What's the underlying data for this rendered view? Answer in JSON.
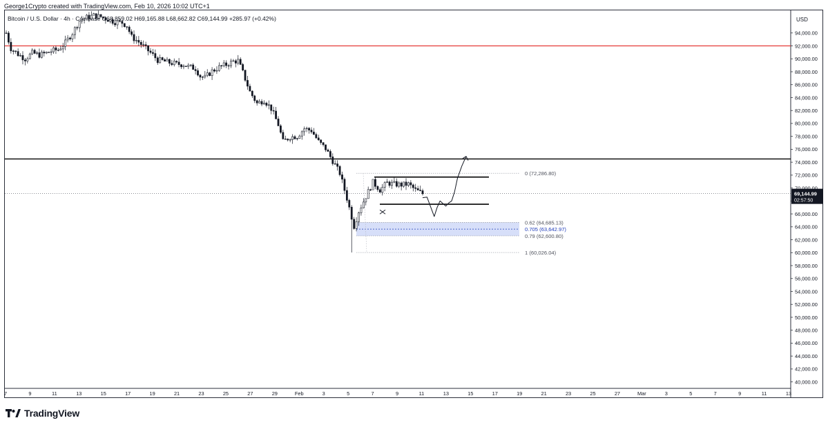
{
  "header": {
    "credit": "George1Crypto created with TradingView.com, Feb 10, 2026 10:02 UTC+1",
    "symbol_line": "Bitcoin / U.S. Dollar · 4h · Coinbase  O68,859.02  H69,165.88  L68,662.82  C69,144.99  +285.97 (+0.42%)"
  },
  "footer": {
    "brand": "TradingView"
  },
  "colors": {
    "up": "#26a69a",
    "down": "#ef5350",
    "candle": "#131722",
    "resistance": "#e53935",
    "level": "#000000",
    "fib_zone": "#c9d4f7",
    "fib_705": "#1e3bb8"
  },
  "chart_data": {
    "type": "candlestick",
    "currency_label": "USD",
    "ylim": [
      39000,
      97500
    ],
    "y_ticks": [
      "94,000.00",
      "92,000.00",
      "90,000.00",
      "88,000.00",
      "86,000.00",
      "84,000.00",
      "82,000.00",
      "80,000.00",
      "78,000.00",
      "76,000.00",
      "74,000.00",
      "72,000.00",
      "70,000.00",
      "68,000.00",
      "66,000.00",
      "64,000.00",
      "62,000.00",
      "60,000.00",
      "58,000.00",
      "56,000.00",
      "54,000.00",
      "52,000.00",
      "50,000.00",
      "48,000.00",
      "46,000.00",
      "44,000.00",
      "42,000.00",
      "40,000.00"
    ],
    "x_ticks": [
      "7",
      "9",
      "11",
      "13",
      "15",
      "17",
      "19",
      "21",
      "23",
      "25",
      "27",
      "29",
      "Feb",
      "3",
      "5",
      "7",
      "9",
      "11",
      "13",
      "15",
      "17",
      "19",
      "21",
      "23",
      "25",
      "27",
      "Mar",
      "3",
      "5",
      "7",
      "9",
      "11",
      "13"
    ],
    "price_path": [
      [
        0,
        94000
      ],
      [
        2,
        91600
      ],
      [
        5,
        90700
      ],
      [
        8,
        90000
      ],
      [
        11,
        90900
      ],
      [
        14,
        90600
      ],
      [
        17,
        90900
      ],
      [
        20,
        91300
      ],
      [
        22,
        91400
      ],
      [
        25,
        92500
      ],
      [
        28,
        94000
      ],
      [
        31,
        95900
      ],
      [
        34,
        96400
      ],
      [
        37,
        96700
      ],
      [
        40,
        96500
      ],
      [
        43,
        96100
      ],
      [
        46,
        95700
      ],
      [
        49,
        95600
      ],
      [
        51,
        95100
      ],
      [
        53,
        93400
      ],
      [
        56,
        92600
      ],
      [
        59,
        91600
      ],
      [
        62,
        90600
      ],
      [
        64,
        89800
      ],
      [
        66,
        89700
      ],
      [
        69,
        89400
      ],
      [
        72,
        89200
      ],
      [
        75,
        89100
      ],
      [
        77,
        88800
      ],
      [
        80,
        88500
      ],
      [
        82,
        87300
      ],
      [
        84,
        87100
      ],
      [
        87,
        88100
      ],
      [
        90,
        88700
      ],
      [
        93,
        89100
      ],
      [
        96,
        89600
      ],
      [
        98,
        89700
      ],
      [
        100,
        87900
      ],
      [
        103,
        84900
      ],
      [
        106,
        83100
      ],
      [
        109,
        83600
      ],
      [
        112,
        82300
      ],
      [
        115,
        79800
      ],
      [
        117,
        77200
      ],
      [
        120,
        77900
      ],
      [
        123,
        78000
      ],
      [
        126,
        79200
      ],
      [
        129,
        78900
      ],
      [
        132,
        77200
      ],
      [
        135,
        76100
      ],
      [
        138,
        74200
      ],
      [
        141,
        72300
      ],
      [
        144,
        68400
      ],
      [
        147,
        64100
      ],
      [
        149,
        66400
      ],
      [
        152,
        68700
      ],
      [
        155,
        70900
      ],
      [
        158,
        69700
      ],
      [
        161,
        70800
      ],
      [
        164,
        70600
      ],
      [
        167,
        70500
      ],
      [
        170,
        70600
      ],
      [
        173,
        69700
      ],
      [
        176,
        69144
      ]
    ],
    "last_price": {
      "value": 69144.99,
      "label": "69,144.99",
      "countdown": "02:57:50"
    },
    "levels": {
      "red_resistance": 92000,
      "black_level": 74500,
      "range_top": 71700,
      "range_bottom": 67500
    },
    "fib": [
      {
        "ratio": "0",
        "price": 72286.8,
        "label": "0 (72,286.80)"
      },
      {
        "ratio": "0.62",
        "price": 64685.13,
        "label": "0.62 (64,685.13)"
      },
      {
        "ratio": "0.705",
        "price": 63642.97,
        "label": "0.705 (63,642.97)"
      },
      {
        "ratio": "0.79",
        "price": 62600.8,
        "label": "0.79 (62,600.80)"
      },
      {
        "ratio": "1",
        "price": 60026.04,
        "label": "1 (60,026.04)"
      }
    ],
    "projection": [
      [
        0,
        68500
      ],
      [
        3,
        68600
      ],
      [
        6,
        66800
      ],
      [
        8,
        65600
      ],
      [
        10,
        67000
      ],
      [
        12,
        68000
      ],
      [
        14,
        67600
      ],
      [
        16,
        67200
      ],
      [
        18,
        67700
      ],
      [
        20,
        68000
      ],
      [
        22,
        69400
      ],
      [
        24,
        71500
      ],
      [
        27,
        73400
      ],
      [
        30,
        74900
      ]
    ]
  }
}
